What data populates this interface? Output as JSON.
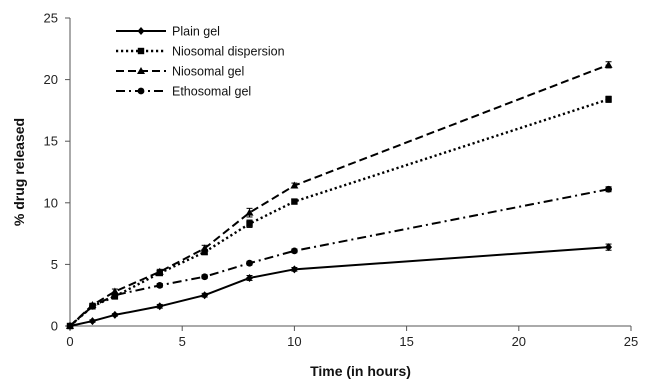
{
  "chart_data": {
    "type": "line",
    "xlabel": "Time (in hours)",
    "ylabel": "% drug released",
    "xlim": [
      0,
      25
    ],
    "ylim": [
      0,
      25
    ],
    "xticks": [
      0,
      5,
      10,
      15,
      20,
      25
    ],
    "yticks": [
      0,
      5,
      10,
      15,
      20,
      25
    ],
    "grid": false,
    "legend": "top-left",
    "x": [
      0,
      1,
      2,
      4,
      6,
      8,
      10,
      24
    ],
    "series": [
      {
        "name": "Plain gel",
        "values": [
          0,
          0.4,
          0.9,
          1.6,
          2.5,
          3.9,
          4.6,
          6.4
        ],
        "errors": [
          0,
          0.1,
          0.1,
          0.15,
          0.15,
          0.2,
          0.15,
          0.25
        ],
        "line": "solid",
        "marker": "diamond",
        "color": "#000000"
      },
      {
        "name": "Niosomal dispersion",
        "values": [
          0,
          1.6,
          2.4,
          4.3,
          6.0,
          8.3,
          10.1,
          18.4
        ],
        "errors": [
          0,
          0.15,
          0.2,
          0.2,
          0.2,
          0.3,
          0.2,
          0.25
        ],
        "line": "dotted",
        "marker": "square",
        "color": "#000000"
      },
      {
        "name": "Niosomal gel",
        "values": [
          0,
          1.7,
          2.8,
          4.4,
          6.3,
          9.2,
          11.4,
          21.2
        ],
        "errors": [
          0,
          0.15,
          0.2,
          0.2,
          0.25,
          0.35,
          0.2,
          0.25
        ],
        "line": "dashed",
        "marker": "triangle",
        "color": "#000000"
      },
      {
        "name": "Ethosomal gel",
        "values": [
          0,
          1.6,
          2.5,
          3.3,
          4.0,
          5.1,
          6.1,
          11.1
        ],
        "errors": [
          0,
          0.15,
          0.15,
          0.15,
          0.15,
          0.15,
          0.15,
          0.2
        ],
        "line": "dashdot",
        "marker": "circle",
        "color": "#000000"
      }
    ]
  }
}
